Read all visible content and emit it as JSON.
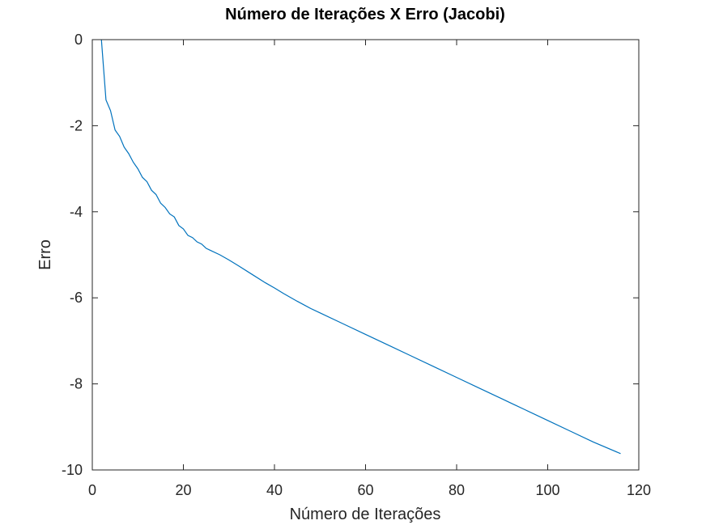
{
  "chart_data": {
    "type": "line",
    "title": "Número de Iterações X Erro (Jacobi)",
    "xlabel": "Número de Iterações",
    "ylabel": "Erro",
    "xlim": [
      0,
      120
    ],
    "ylim": [
      -10,
      0
    ],
    "xticks": [
      0,
      20,
      40,
      60,
      80,
      100,
      120
    ],
    "yticks": [
      0,
      -2,
      -4,
      -6,
      -8,
      -10
    ],
    "grid": false,
    "legend": "none",
    "series": [
      {
        "color": "#0072bd",
        "x": [
          2,
          3,
          4,
          5,
          6,
          7,
          8,
          9,
          10,
          11,
          12,
          13,
          14,
          15,
          16,
          17,
          18,
          19,
          20,
          21,
          22,
          23,
          24,
          25,
          26,
          28,
          30,
          32,
          35,
          38,
          40,
          42,
          45,
          48,
          50,
          55,
          60,
          65,
          70,
          75,
          80,
          85,
          90,
          95,
          100,
          105,
          110,
          116
        ],
        "y": [
          0,
          -1.4,
          -1.65,
          -2.1,
          -2.25,
          -2.5,
          -2.65,
          -2.85,
          -3.0,
          -3.2,
          -3.3,
          -3.5,
          -3.6,
          -3.8,
          -3.9,
          -4.05,
          -4.12,
          -4.32,
          -4.4,
          -4.55,
          -4.6,
          -4.7,
          -4.75,
          -4.85,
          -4.9,
          -5.0,
          -5.12,
          -5.25,
          -5.45,
          -5.65,
          -5.77,
          -5.9,
          -6.08,
          -6.25,
          -6.35,
          -6.6,
          -6.85,
          -7.1,
          -7.35,
          -7.6,
          -7.85,
          -8.1,
          -8.35,
          -8.6,
          -8.85,
          -9.1,
          -9.35,
          -9.62
        ]
      }
    ]
  }
}
